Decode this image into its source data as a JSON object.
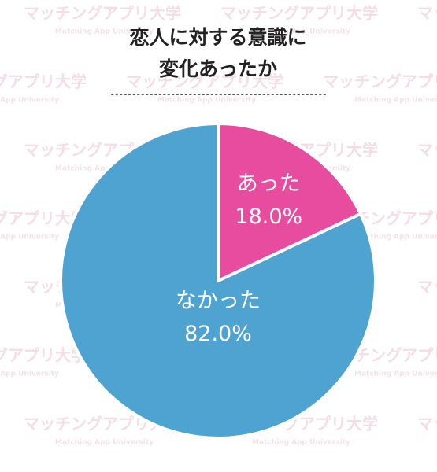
{
  "chart_data": {
    "type": "pie",
    "title_lines": [
      "恋人に対する意識に",
      "変化あったか"
    ],
    "categories": [
      "あった",
      "なかった"
    ],
    "values": [
      18.0,
      82.0
    ],
    "value_labels": [
      "18.0%",
      "82.0%"
    ],
    "colors": [
      "#e84c9f",
      "#4fa3d1"
    ]
  },
  "watermark": {
    "text": "マッチングアプリ大学",
    "subtext": "Matching App University"
  }
}
